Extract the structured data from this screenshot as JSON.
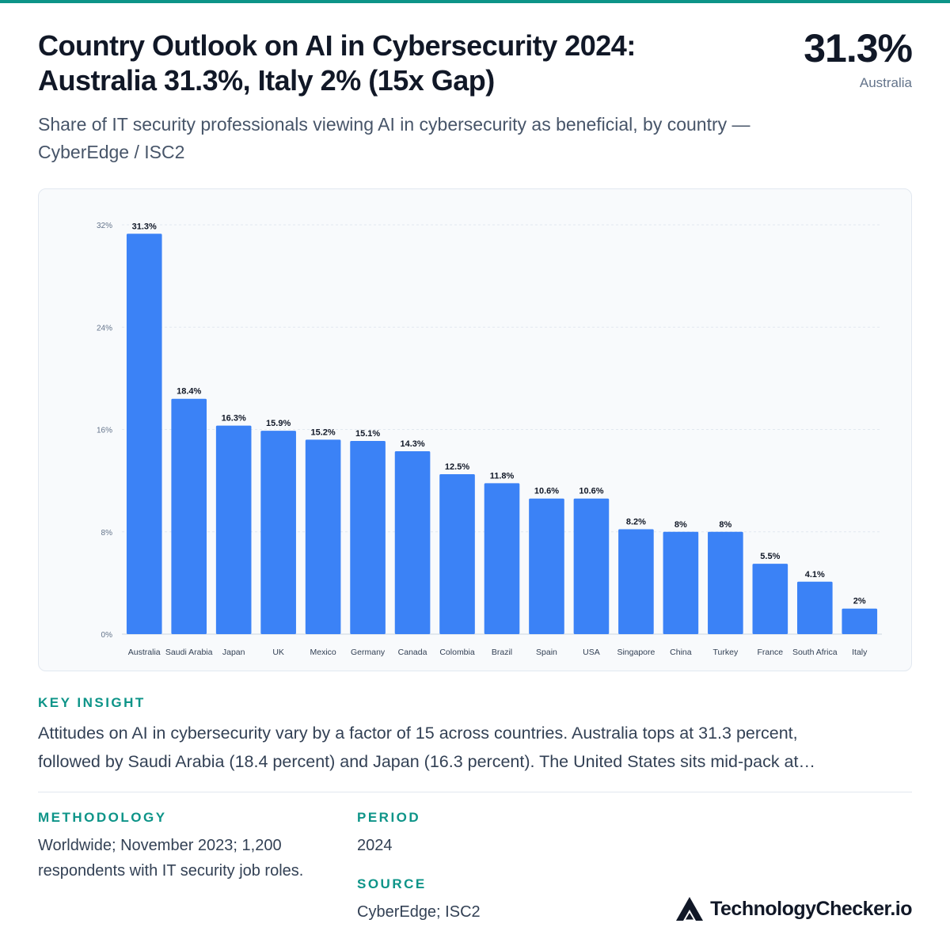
{
  "header": {
    "title_line1": "Country Outlook on AI in Cybersecurity 2024:",
    "title_line2": "Australia 31.3%, Italy 2% (15x Gap)",
    "headline_value": "31.3%",
    "headline_label": "Australia",
    "subtitle": "Share of IT security professionals viewing AI in cybersecurity as beneficial, by country — CyberEdge / ISC2"
  },
  "chart_data": {
    "type": "bar",
    "categories": [
      "Australia",
      "Saudi Arabia",
      "Japan",
      "UK",
      "Mexico",
      "Germany",
      "Canada",
      "Colombia",
      "Brazil",
      "Spain",
      "USA",
      "Singapore",
      "China",
      "Turkey",
      "France",
      "South Africa",
      "Italy"
    ],
    "values": [
      31.3,
      18.4,
      16.3,
      15.9,
      15.2,
      15.1,
      14.3,
      12.5,
      11.8,
      10.6,
      10.6,
      8.2,
      8,
      8,
      5.5,
      4.1,
      2
    ],
    "data_labels": [
      "31.3%",
      "18.4%",
      "16.3%",
      "15.9%",
      "15.2%",
      "15.1%",
      "14.3%",
      "12.5%",
      "11.8%",
      "10.6%",
      "10.6%",
      "8.2%",
      "8%",
      "8%",
      "5.5%",
      "4.1%",
      "2%"
    ],
    "y_ticks": [
      0,
      8,
      16,
      24,
      32
    ],
    "y_tick_labels": [
      "0%",
      "8%",
      "16%",
      "24%",
      "32%"
    ],
    "ylim": [
      0,
      32
    ],
    "grid": true,
    "legend": "none",
    "title": "",
    "xlabel": "",
    "ylabel": "",
    "bar_color": "#3b82f6"
  },
  "insight": {
    "label": "KEY INSIGHT",
    "line1": "Attitudes on AI in cybersecurity vary by a factor of 15 across countries. Australia tops at 31.3 percent,",
    "line2": "followed by Saudi Arabia (18.4 percent) and Japan (16.3 percent). The United States sits mid-pack at…"
  },
  "methodology": {
    "label": "METHODOLOGY",
    "line1": "Worldwide; November 2023; 1,200",
    "line2": "respondents with IT security job roles."
  },
  "period": {
    "label": "PERIOD",
    "value": "2024"
  },
  "source": {
    "label": "SOURCE",
    "value": "CyberEdge; ISC2"
  },
  "brand": {
    "name": "TechnologyChecker.io",
    "icon": "triangle-logo-icon"
  },
  "colors": {
    "accent": "#0d9488",
    "bar": "#3b82f6",
    "text": "#111827",
    "muted": "#475569"
  }
}
